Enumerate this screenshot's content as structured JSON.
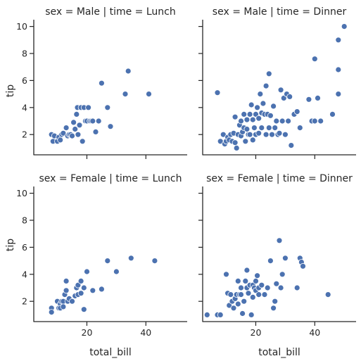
{
  "chart_data": {
    "type": "scatter",
    "facet": "grid",
    "x_label": "total_bill",
    "y_label": "tip",
    "xlim": [
      2,
      54
    ],
    "ylim": [
      0.5,
      10.5
    ],
    "x_ticks": [
      "20",
      "40"
    ],
    "y_ticks": [
      "2",
      "4",
      "6",
      "8",
      "10"
    ],
    "x_tick_values": [
      20,
      40
    ],
    "y_tick_values": [
      2,
      4,
      6,
      8,
      10
    ],
    "grid": false,
    "marker_color": "#4c72b0",
    "marker_edge": "#ffffff",
    "axis_color": "#262626",
    "panels": [
      {
        "title": "sex = Male | time = Lunch",
        "points": [
          [
            8,
            2
          ],
          [
            8.5,
            1.5
          ],
          [
            9,
            1.9
          ],
          [
            10,
            1.5
          ],
          [
            10.5,
            1.8
          ],
          [
            11,
            1.6
          ],
          [
            11.5,
            2
          ],
          [
            12,
            2.1
          ],
          [
            13,
            2.5
          ],
          [
            13.5,
            1.9
          ],
          [
            14,
            2
          ],
          [
            14.5,
            2
          ],
          [
            15,
            1.9
          ],
          [
            15.5,
            2.9
          ],
          [
            16,
            2.4
          ],
          [
            16.5,
            3.5
          ],
          [
            16.8,
            4
          ],
          [
            17,
            2
          ],
          [
            17.5,
            2.7
          ],
          [
            18,
            4
          ],
          [
            18.5,
            1.5
          ],
          [
            19,
            4
          ],
          [
            19.5,
            3
          ],
          [
            20,
            3
          ],
          [
            20.5,
            4
          ],
          [
            21,
            3
          ],
          [
            21.5,
            3
          ],
          [
            22,
            3
          ],
          [
            23,
            2.2
          ],
          [
            24,
            3
          ],
          [
            25,
            5.8
          ],
          [
            27,
            4
          ],
          [
            28,
            2.6
          ],
          [
            33,
            5
          ],
          [
            34,
            6.7
          ],
          [
            41,
            5
          ]
        ]
      },
      {
        "title": "sex = Male | time = Dinner",
        "points": [
          [
            7,
            5.1
          ],
          [
            8,
            1.5
          ],
          [
            9,
            2
          ],
          [
            9.5,
            1.3
          ],
          [
            10,
            1.5
          ],
          [
            10.5,
            1.8
          ],
          [
            11,
            1.6
          ],
          [
            11.5,
            2
          ],
          [
            12,
            1.5
          ],
          [
            12.5,
            2.1
          ],
          [
            13,
            1.4
          ],
          [
            13,
            3.3
          ],
          [
            13.5,
            1
          ],
          [
            14,
            2
          ],
          [
            14.5,
            2.7
          ],
          [
            15,
            1.9
          ],
          [
            15,
            3
          ],
          [
            15.5,
            2.2
          ],
          [
            16,
            3.5
          ],
          [
            16,
            2.5
          ],
          [
            16.5,
            1.5
          ],
          [
            17,
            2.4
          ],
          [
            17,
            3.1
          ],
          [
            17.5,
            2
          ],
          [
            18,
            2
          ],
          [
            18,
            3.5
          ],
          [
            18.5,
            4.2
          ],
          [
            19,
            3.1
          ],
          [
            19,
            1.6
          ],
          [
            19.5,
            2.5
          ],
          [
            20,
            3.5
          ],
          [
            20,
            2
          ],
          [
            20.5,
            4
          ],
          [
            21,
            3.2
          ],
          [
            21,
            2.1
          ],
          [
            21.5,
            5
          ],
          [
            22,
            3.6
          ],
          [
            22,
            2.5
          ],
          [
            22.5,
            4.3
          ],
          [
            23,
            3.5
          ],
          [
            23.5,
            5.6
          ],
          [
            23.5,
            2
          ],
          [
            24,
            3.5
          ],
          [
            24.5,
            2.5
          ],
          [
            24.5,
            6.5
          ],
          [
            25,
            3.4
          ],
          [
            25.5,
            2
          ],
          [
            26,
            4.1
          ],
          [
            26.5,
            2.5
          ],
          [
            27,
            3
          ],
          [
            27.5,
            2
          ],
          [
            28,
            2.1
          ],
          [
            28.5,
            5.3
          ],
          [
            29,
            3
          ],
          [
            29.5,
            4.7
          ],
          [
            30,
            2
          ],
          [
            30.5,
            5
          ],
          [
            31,
            3
          ],
          [
            31.5,
            4.8
          ],
          [
            32,
            1.2
          ],
          [
            33,
            3.5
          ],
          [
            34,
            3.7
          ],
          [
            35,
            2.5
          ],
          [
            38,
            4.6
          ],
          [
            39,
            3
          ],
          [
            40,
            7.6
          ],
          [
            40,
            3
          ],
          [
            41,
            4.7
          ],
          [
            42,
            3
          ],
          [
            46,
            3.5
          ],
          [
            48,
            6.8
          ],
          [
            48,
            5
          ],
          [
            48,
            9
          ],
          [
            50,
            10
          ]
        ]
      },
      {
        "title": "sex = Female | time = Lunch",
        "points": [
          [
            8,
            1.5
          ],
          [
            8,
            1.2
          ],
          [
            10,
            2
          ],
          [
            10.5,
            1.5
          ],
          [
            11,
            1.8
          ],
          [
            11,
            1.5
          ],
          [
            11.5,
            2
          ],
          [
            12,
            2
          ],
          [
            12,
            1.6
          ],
          [
            12.5,
            2.5
          ],
          [
            13,
            2.8
          ],
          [
            13,
            3.5
          ],
          [
            13.5,
            2
          ],
          [
            14,
            2.2
          ],
          [
            15,
            2
          ],
          [
            16,
            2.4
          ],
          [
            16.5,
            3
          ],
          [
            17,
            3.2
          ],
          [
            17,
            2.5
          ],
          [
            18,
            3.5
          ],
          [
            18,
            2.6
          ],
          [
            19,
            1.4
          ],
          [
            19,
            3
          ],
          [
            20,
            4.2
          ],
          [
            22,
            2.8
          ],
          [
            25,
            2.9
          ],
          [
            27,
            5
          ],
          [
            30,
            4.2
          ],
          [
            35,
            5.2
          ],
          [
            43,
            5
          ]
        ]
      },
      {
        "title": "sex = Female | time = Dinner",
        "points": [
          [
            3.5,
            1
          ],
          [
            7,
            1
          ],
          [
            8,
            1
          ],
          [
            10,
            4
          ],
          [
            10.5,
            2.6
          ],
          [
            11,
            1.7
          ],
          [
            11.5,
            2.5
          ],
          [
            12,
            2
          ],
          [
            12.5,
            1.5
          ],
          [
            13,
            2.2
          ],
          [
            13.5,
            2.5
          ],
          [
            14,
            1.8
          ],
          [
            14,
            3.5
          ],
          [
            14.5,
            2.5
          ],
          [
            15,
            2.5
          ],
          [
            15,
            3
          ],
          [
            15.5,
            1.1
          ],
          [
            16,
            2
          ],
          [
            16.5,
            3.5
          ],
          [
            17,
            3
          ],
          [
            17,
            4.3
          ],
          [
            17.5,
            2.6
          ],
          [
            18,
            3.2
          ],
          [
            18.5,
            1
          ],
          [
            19,
            3.2
          ],
          [
            19,
            2.3
          ],
          [
            19.5,
            3
          ],
          [
            20,
            3.5
          ],
          [
            20,
            2.8
          ],
          [
            20.5,
            3.9
          ],
          [
            21,
            3
          ],
          [
            21,
            2.5
          ],
          [
            22,
            3.2
          ],
          [
            23,
            2.5
          ],
          [
            24,
            3
          ],
          [
            25,
            5
          ],
          [
            26,
            1.5
          ],
          [
            26.5,
            2
          ],
          [
            27,
            3.3
          ],
          [
            28,
            6.5
          ],
          [
            28.5,
            3
          ],
          [
            29,
            4
          ],
          [
            30,
            5.2
          ],
          [
            34,
            3
          ],
          [
            35,
            5.2
          ],
          [
            35.5,
            4.9
          ],
          [
            36,
            4.6
          ],
          [
            44.5,
            2.5
          ]
        ]
      }
    ]
  }
}
